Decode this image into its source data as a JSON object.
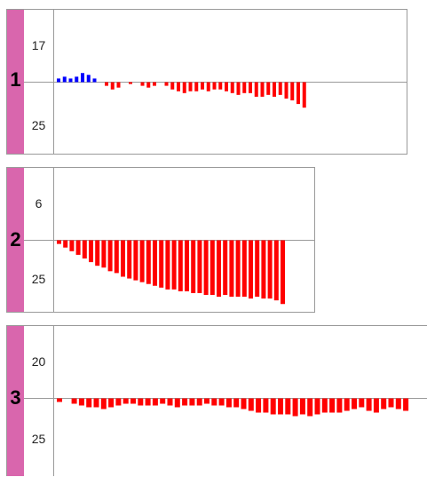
{
  "chart_data": [
    {
      "type": "bar",
      "panel_label": "1",
      "tick_top": "17",
      "tick_bottom": "25",
      "colors": {
        "positive": "#0000ff",
        "negative": "#ff0000",
        "tab": "#d966ad"
      },
      "values": [
        2,
        3,
        2,
        3,
        5,
        4,
        2,
        0,
        -2,
        -4,
        -3,
        0,
        -1,
        0,
        -2,
        -3,
        -2,
        0,
        -2,
        -4,
        -5,
        -6,
        -5,
        -5,
        -4,
        -5,
        -4,
        -4,
        -5,
        -6,
        -7,
        -6,
        -6,
        -8,
        -8,
        -7,
        -8,
        -7,
        -9,
        -10,
        -12,
        -14
      ]
    },
    {
      "type": "bar",
      "panel_label": "2",
      "tick_top": "6",
      "tick_bottom": "25",
      "colors": {
        "positive": "#0000ff",
        "negative": "#ff0000",
        "tab": "#d966ad"
      },
      "values": [
        -2,
        -4,
        -6,
        -8,
        -10,
        -12,
        -14,
        -15,
        -17,
        -18,
        -20,
        -21,
        -22,
        -23,
        -24,
        -25,
        -26,
        -27,
        -27,
        -28,
        -28,
        -29,
        -29,
        -30,
        -30,
        -31,
        -30,
        -31,
        -31,
        -31,
        -32,
        -31,
        -32,
        -32,
        -33,
        -35
      ]
    },
    {
      "type": "bar",
      "panel_label": "3",
      "tick_top": "20",
      "tick_bottom": "25",
      "colors": {
        "positive": "#0000ff",
        "negative": "#ff0000",
        "tab": "#d966ad"
      },
      "values": [
        -2,
        0,
        -3,
        -4,
        -5,
        -5,
        -6,
        -5,
        -4,
        -3,
        -3,
        -4,
        -4,
        -4,
        -3,
        -4,
        -5,
        -4,
        -4,
        -4,
        -3,
        -4,
        -4,
        -5,
        -5,
        -6,
        -7,
        -8,
        -8,
        -9,
        -9,
        -9,
        -10,
        -9,
        -10,
        -9,
        -8,
        -8,
        -8,
        -7,
        -6,
        -5,
        -7,
        -8,
        -6,
        -5,
        -6,
        -7
      ]
    }
  ]
}
